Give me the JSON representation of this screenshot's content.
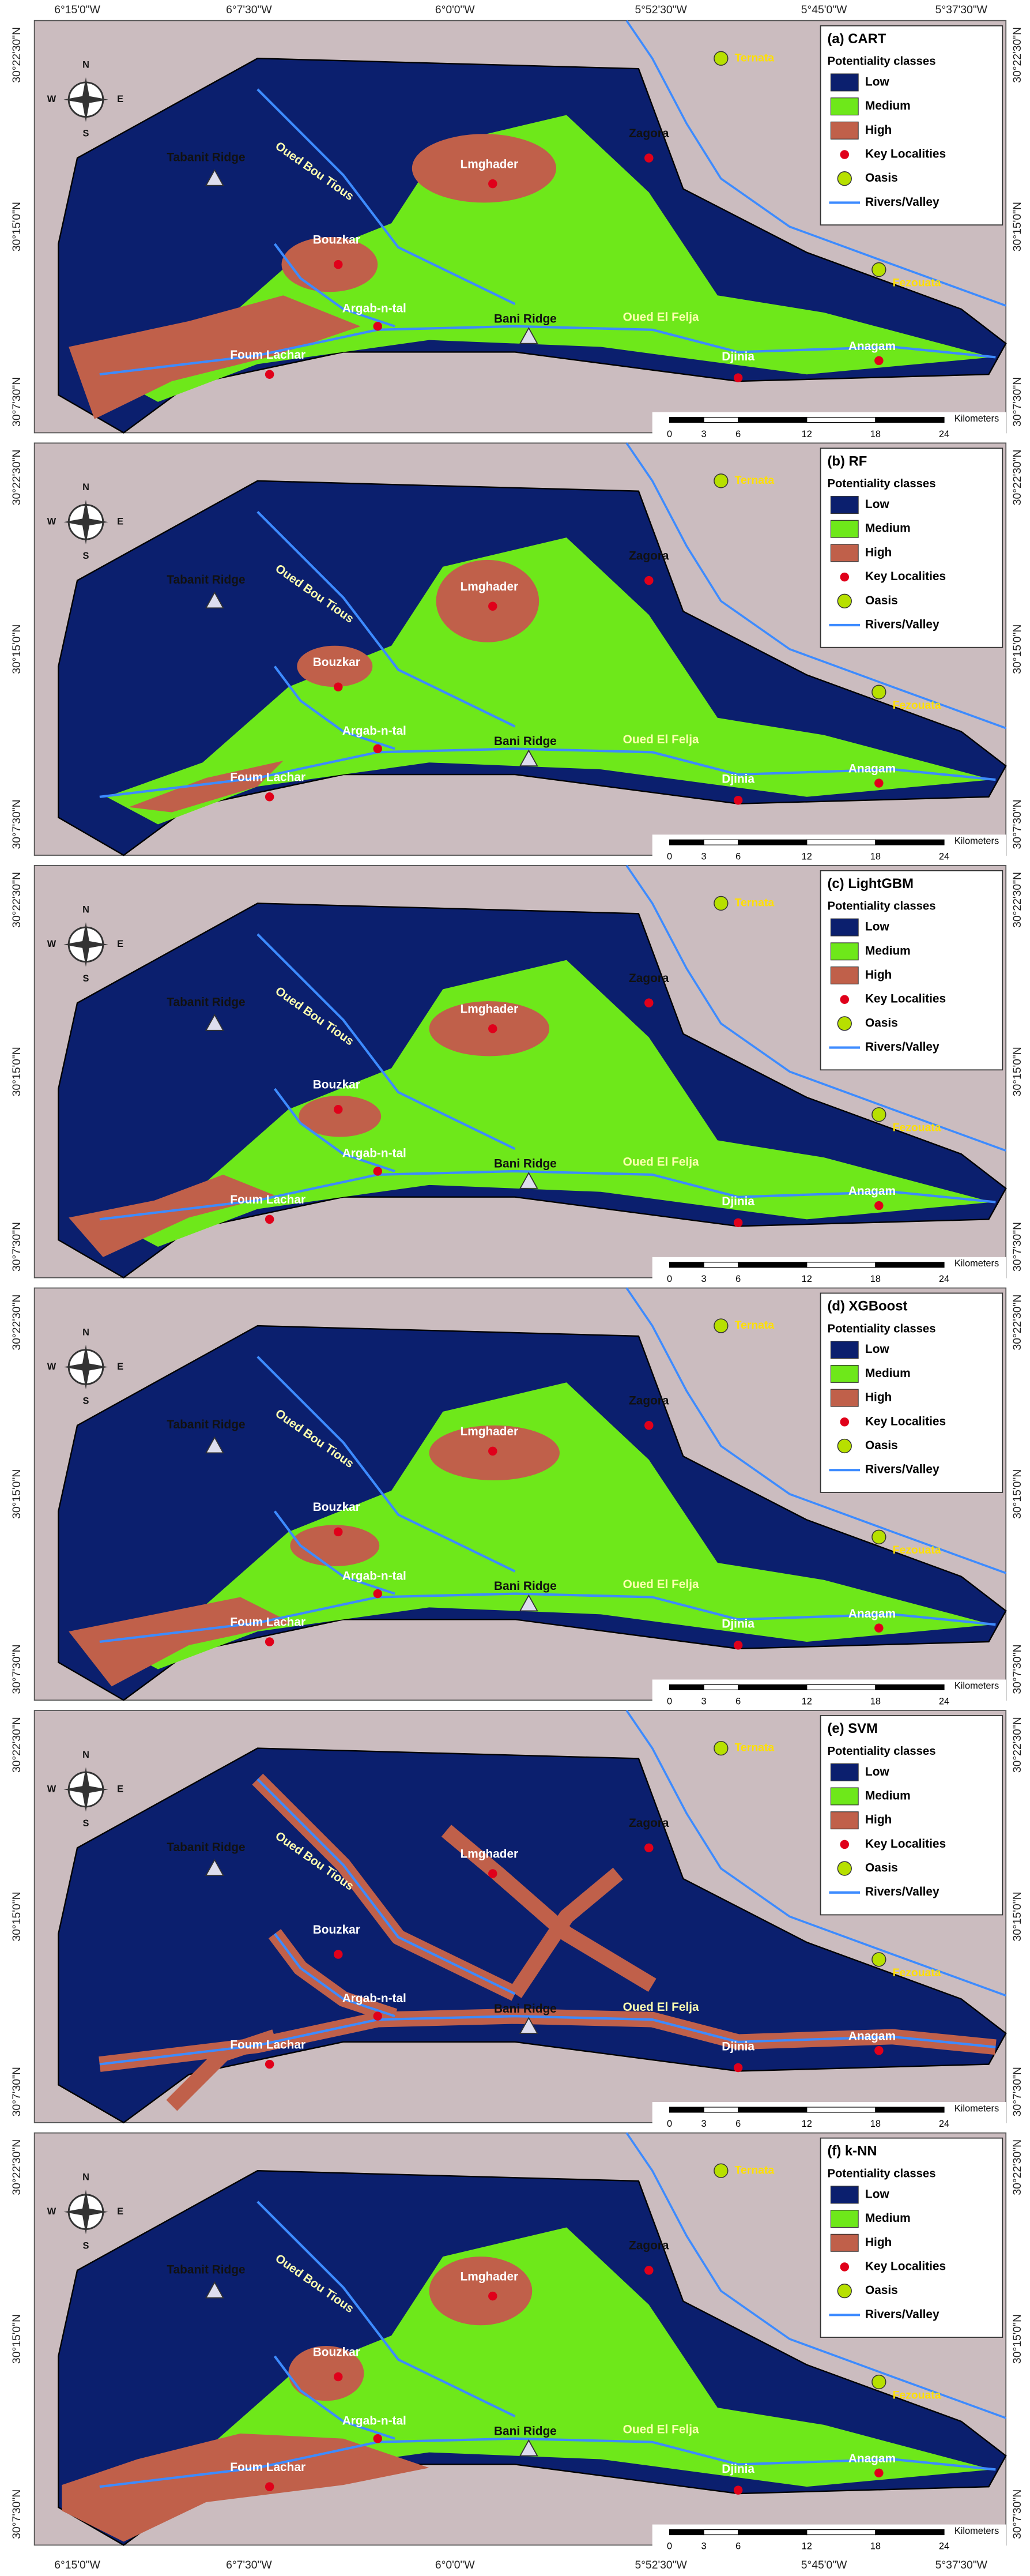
{
  "coordinates": {
    "longitude": [
      "6°15'0\"W",
      "6°7'30\"W",
      "6°0'0\"W",
      "5°52'30\"W",
      "5°45'0\"W",
      "5°37'30\"W"
    ],
    "latitude": [
      "30°22'30\"N",
      "30°15'0\"N",
      "30°7'30\"N"
    ]
  },
  "legend": {
    "heading": "Potentiality classes",
    "items": [
      "Low",
      "Medium",
      "High",
      "Key Localities",
      "Oasis",
      "Rivers/Valley"
    ]
  },
  "scale": {
    "unit": "Kilometers",
    "ticks": [
      0,
      3,
      6,
      12,
      18,
      24
    ]
  },
  "compass": [
    "N",
    "E",
    "S",
    "W"
  ],
  "places": [
    "Tabanit Ridge",
    "Oued Bou Tious",
    "Lmghader",
    "Zagora",
    "Bouzkar",
    "Argab-n-tal",
    "Bani Ridge",
    "Oued El Felja",
    "Djinia",
    "Anagam",
    "Foum Lachar"
  ],
  "oases": [
    "Ternata",
    "Fezouata"
  ],
  "panels": [
    {
      "title": "(a) CART"
    },
    {
      "title": "(b) RF"
    },
    {
      "title": "(c) LightGBM"
    },
    {
      "title": "(d) XGBoost"
    },
    {
      "title": "(e) SVM"
    },
    {
      "title": "(f) k-NN"
    }
  ]
}
